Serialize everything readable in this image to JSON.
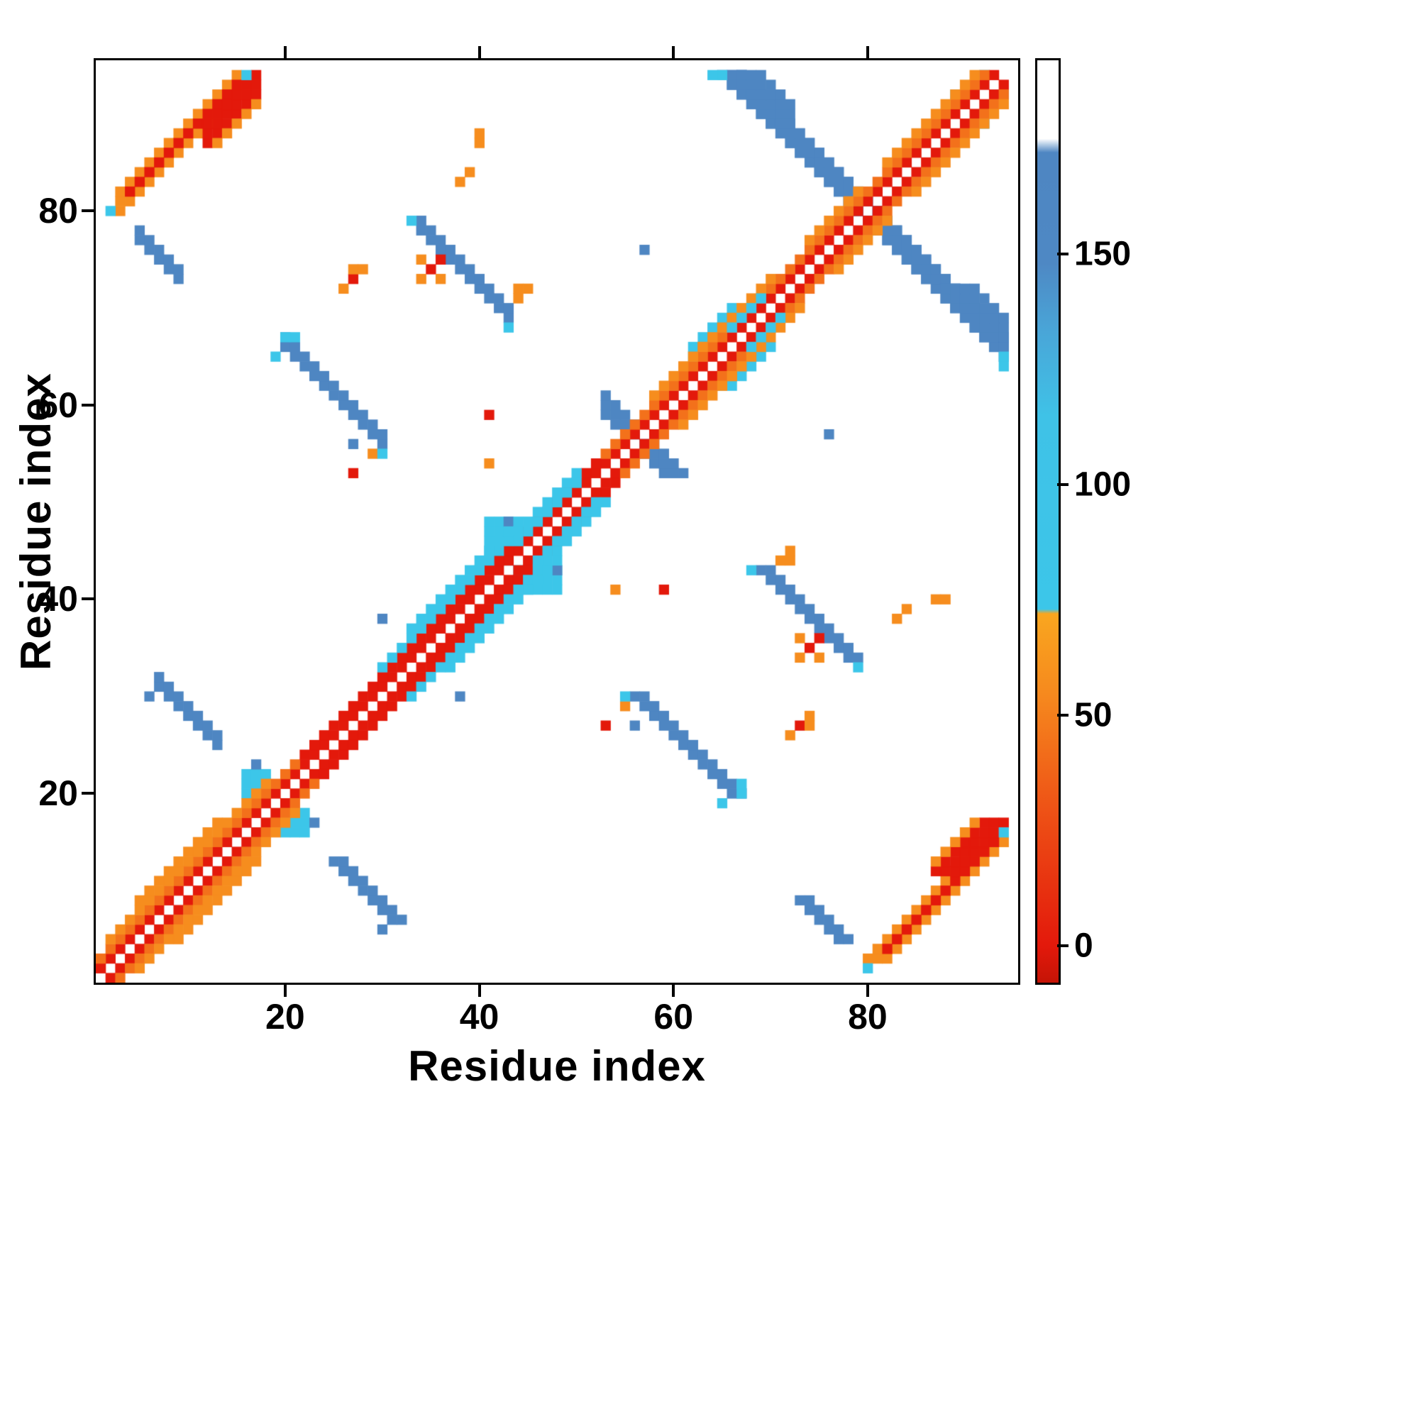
{
  "chart_data": {
    "type": "heatmap",
    "title": "",
    "xlabel": "Residue index",
    "ylabel": "Residue index",
    "n_residues": 95,
    "x_range": [
      1,
      94
    ],
    "y_range": [
      1,
      94
    ],
    "x_ticks": [
      20,
      40,
      60,
      80
    ],
    "y_ticks": [
      20,
      40,
      60,
      80
    ],
    "grid": false,
    "background": "#ffffff",
    "legend_position": "right",
    "colorbar": {
      "ticks": [
        0,
        50,
        100,
        150
      ],
      "vmin": -8,
      "vmax": 192,
      "gradient": [
        {
          "v": -8,
          "c": "#c51406"
        },
        {
          "v": 0,
          "c": "#e3190b"
        },
        {
          "v": 30,
          "c": "#ee5316"
        },
        {
          "v": 55,
          "c": "#f68a1e"
        },
        {
          "v": 72,
          "c": "#f9a61f"
        },
        {
          "v": 73,
          "c": "#3cc6e9"
        },
        {
          "v": 115,
          "c": "#3fc2e7"
        },
        {
          "v": 133,
          "c": "#49a6d8"
        },
        {
          "v": 148,
          "c": "#4e88c4"
        },
        {
          "v": 172,
          "c": "#4e86c2"
        },
        {
          "v": 175,
          "c": "#ffffff"
        },
        {
          "v": 192,
          "c": "#ffffff"
        }
      ]
    },
    "value_colors": [
      {
        "max": 20,
        "c": "#e3190b"
      },
      {
        "max": 46,
        "c": "#f3711b"
      },
      {
        "max": 58,
        "c": "#f68d1e"
      },
      {
        "max": 74,
        "c": "#f9a61f"
      },
      {
        "max": 100,
        "c": "#3cc6e9"
      },
      {
        "max": 120,
        "c": "#43bce4"
      },
      {
        "max": 140,
        "c": "#4a9fd2"
      },
      {
        "max": 165,
        "c": "#4e86c2"
      },
      {
        "max": 999,
        "c": "#ffffff"
      }
    ],
    "contacts": [
      {
        "d": "anti",
        "i": 66,
        "j": 94,
        "len": 29,
        "w": 3,
        "v": 150,
        "m": 1
      },
      {
        "d": "anti",
        "i": 67,
        "j": 94,
        "len": 6,
        "w": 4,
        "v": 150,
        "m": 1
      },
      {
        "d": "diag",
        "i": 3,
        "j": 81,
        "len": 13,
        "w": 3,
        "v": 48,
        "m": 1
      },
      {
        "d": "diag",
        "i": 4,
        "j": 82,
        "len": 12,
        "w": 1,
        "v": 10,
        "m": 1
      },
      {
        "d": "diag",
        "i": 12,
        "j": 88,
        "len": 6,
        "w": 3,
        "v": 12,
        "m": 1
      },
      {
        "d": "diag",
        "i": 13,
        "j": 87,
        "len": 5,
        "w": 1,
        "v": 50,
        "m": 1
      },
      {
        "d": "cell",
        "i": 2,
        "j": 80,
        "v": 85,
        "m": 1
      },
      {
        "d": "cell",
        "i": 16,
        "j": 94,
        "v": 90,
        "m": 1
      },
      {
        "d": "anti",
        "i": 7,
        "j": 31,
        "len": 7,
        "w": 2,
        "v": 150,
        "m": 1
      },
      {
        "d": "cell",
        "i": 6,
        "j": 30,
        "v": 152,
        "m": 1
      },
      {
        "d": "anti",
        "i": 20,
        "j": 66,
        "len": 11,
        "w": 2,
        "v": 150,
        "m": 1
      },
      {
        "d": "cell",
        "i": 19,
        "j": 65,
        "v": 88,
        "m": 1
      },
      {
        "d": "cell",
        "i": 20,
        "j": 67,
        "v": 90,
        "m": 1
      },
      {
        "d": "cell",
        "i": 21,
        "j": 67,
        "v": 85,
        "m": 1
      },
      {
        "d": "cell",
        "i": 29,
        "j": 55,
        "v": 50,
        "m": 1
      },
      {
        "d": "cell",
        "i": 30,
        "j": 55,
        "v": 85,
        "m": 1
      },
      {
        "d": "anti",
        "i": 34,
        "j": 78,
        "len": 10,
        "w": 2,
        "v": 150,
        "m": 1
      },
      {
        "d": "cell",
        "i": 33,
        "j": 79,
        "v": 88,
        "m": 1
      },
      {
        "d": "cell",
        "i": 44,
        "j": 71,
        "v": 52,
        "m": 1
      },
      {
        "d": "cell",
        "i": 44,
        "j": 72,
        "v": 48,
        "m": 1
      },
      {
        "d": "cell",
        "i": 45,
        "j": 72,
        "v": 55,
        "m": 1
      },
      {
        "d": "cell",
        "i": 43,
        "j": 68,
        "v": 85,
        "m": 1
      },
      {
        "d": "anti",
        "i": 5,
        "j": 77,
        "len": 5,
        "w": 2,
        "v": 152,
        "m": 1
      },
      {
        "d": "anti",
        "i": 53,
        "j": 60,
        "len": 4,
        "w": 3,
        "v": 150,
        "m": 1
      },
      {
        "d": "rect",
        "i": 41,
        "j": 44,
        "w": 3,
        "len": 5,
        "v": 85,
        "m": 1
      },
      {
        "d": "cell",
        "i": 43,
        "j": 48,
        "v": 150,
        "m": 1
      },
      {
        "d": "rect",
        "i": 16,
        "j": 20,
        "w": 3,
        "len": 3,
        "v": 88,
        "m": 1
      },
      {
        "d": "cell",
        "i": 17,
        "j": 23,
        "v": 150,
        "m": 1
      },
      {
        "d": "diag",
        "i": 62,
        "j": 65,
        "len": 5,
        "w": 2,
        "v": 86,
        "m": 1
      },
      {
        "d": "cell",
        "i": 63,
        "j": 66,
        "v": 50,
        "m": 1
      },
      {
        "d": "cell",
        "i": 30,
        "j": 38,
        "v": 150,
        "m": 1
      },
      {
        "d": "cell",
        "i": 57,
        "j": 76,
        "v": 150,
        "m": 1
      },
      {
        "d": "cell",
        "i": 56,
        "j": 27,
        "v": 150,
        "m": 1
      },
      {
        "d": "cell",
        "i": 41,
        "j": 59,
        "v": 10,
        "m": 1
      },
      {
        "d": "cell",
        "i": 54,
        "j": 41,
        "v": 48,
        "m": 1
      },
      {
        "d": "cell",
        "i": 27,
        "j": 53,
        "v": 10,
        "m": 1
      },
      {
        "d": "cell",
        "i": 40,
        "j": 87,
        "v": 50,
        "m": 1
      },
      {
        "d": "cell",
        "i": 40,
        "j": 88,
        "v": 55,
        "m": 1
      },
      {
        "d": "cell",
        "i": 39,
        "j": 84,
        "v": 48,
        "m": 1
      },
      {
        "d": "cell",
        "i": 38,
        "j": 83,
        "v": 52,
        "m": 1
      },
      {
        "d": "cell",
        "i": 26,
        "j": 72,
        "v": 50,
        "m": 1
      },
      {
        "d": "cell",
        "i": 27,
        "j": 73,
        "v": 12,
        "m": 1
      },
      {
        "d": "cell",
        "i": 27,
        "j": 74,
        "v": 50,
        "m": 1
      },
      {
        "d": "cell",
        "i": 28,
        "j": 74,
        "v": 48,
        "m": 1
      },
      {
        "d": "cell",
        "i": 35,
        "j": 74,
        "v": 10,
        "m": 1
      },
      {
        "d": "cell",
        "i": 36,
        "j": 75,
        "v": 12,
        "m": 1
      },
      {
        "d": "cell",
        "i": 34,
        "j": 73,
        "v": 50,
        "m": 1
      },
      {
        "d": "cell",
        "i": 36,
        "j": 73,
        "v": 55,
        "m": 1
      },
      {
        "d": "cell",
        "i": 34,
        "j": 75,
        "v": 48,
        "m": 1
      },
      {
        "d": "cell",
        "i": 94,
        "j": 65,
        "v": 88,
        "m": 1
      },
      {
        "d": "cell",
        "i": 94,
        "j": 64,
        "v": 85,
        "m": 1
      },
      {
        "d": "cell",
        "i": 12,
        "j": 15,
        "v": 86,
        "m": 1
      },
      {
        "d": "cell",
        "i": 89,
        "j": 92,
        "v": 88,
        "m": 1
      },
      {
        "d": "cell",
        "i": 92,
        "j": 94,
        "v": 85,
        "m": 1
      },
      {
        "d": "diag",
        "i": 1,
        "j": 2,
        "len": 93,
        "w": 1,
        "v": 8,
        "m": 1
      },
      {
        "d": "diag",
        "i": 1,
        "j": 3,
        "len": 21,
        "w": 1,
        "v": 45,
        "m": 1
      },
      {
        "d": "diag",
        "i": 22,
        "j": 24,
        "len": 31,
        "w": 1,
        "v": 12,
        "m": 1
      },
      {
        "d": "diag",
        "i": 53,
        "j": 55,
        "len": 41,
        "w": 1,
        "v": 45,
        "m": 1
      },
      {
        "d": "diag",
        "i": 2,
        "j": 5,
        "len": 17,
        "w": 1,
        "v": 52,
        "m": 1
      },
      {
        "d": "diag",
        "i": 30,
        "j": 33,
        "len": 21,
        "w": 1,
        "v": 88,
        "m": 1
      },
      {
        "d": "diag",
        "i": 58,
        "j": 61,
        "len": 13,
        "w": 1,
        "v": 50,
        "m": 1
      },
      {
        "d": "diag",
        "i": 74,
        "j": 77,
        "len": 6,
        "w": 1,
        "v": 48,
        "m": 1
      },
      {
        "d": "diag",
        "i": 82,
        "j": 85,
        "len": 10,
        "w": 1,
        "v": 50,
        "m": 1
      },
      {
        "d": "diag",
        "i": 33,
        "j": 37,
        "len": 12,
        "w": 1,
        "v": 92,
        "m": 1
      },
      {
        "d": "diag",
        "i": 5,
        "j": 9,
        "len": 9,
        "w": 1,
        "v": 55,
        "m": 1
      },
      {
        "d": "diag",
        "i": 44,
        "j": 46,
        "len": 7,
        "w": 1,
        "v": 86,
        "m": 1
      },
      {
        "d": "diag",
        "i": 66,
        "j": 68,
        "len": 4,
        "w": 1,
        "v": 88,
        "m": 1
      }
    ]
  }
}
